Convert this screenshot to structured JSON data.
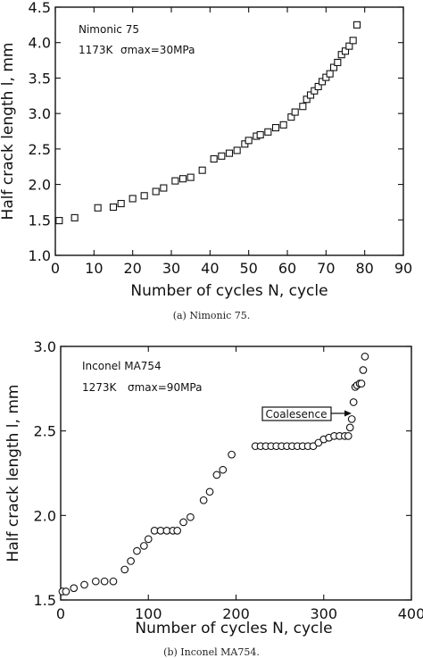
{
  "chart_data": [
    {
      "type": "scatter",
      "marker": "square",
      "xlabel": "Number of cycles  N,  cycle",
      "ylabel": "Half crack length  l,  mm",
      "xlim": [
        0,
        90
      ],
      "ylim": [
        1.0,
        4.5
      ],
      "xticks": [
        "0",
        "10",
        "20",
        "30",
        "40",
        "50",
        "60",
        "70",
        "80",
        "90"
      ],
      "yticks": [
        "1.0",
        "1.5",
        "2.0",
        "2.5",
        "3.0",
        "3.5",
        "4.0",
        "4.5"
      ],
      "annotations": [
        "Nimonic 75",
        "1173K",
        "σmax=30MPa"
      ],
      "caption": "(a)   Nimonic 75.",
      "series": [
        {
          "x": [
            1,
            5,
            11,
            15,
            17,
            20,
            23,
            26,
            28,
            31,
            33,
            35,
            38,
            41,
            43,
            45,
            47,
            49,
            50,
            52,
            53,
            55,
            57,
            59,
            61,
            62,
            64,
            65,
            66,
            67,
            68,
            69,
            70,
            71,
            72,
            73,
            74,
            75,
            76,
            77,
            78
          ],
          "y": [
            1.49,
            1.53,
            1.67,
            1.68,
            1.73,
            1.8,
            1.84,
            1.9,
            1.95,
            2.05,
            2.08,
            2.1,
            2.2,
            2.36,
            2.4,
            2.44,
            2.48,
            2.57,
            2.62,
            2.68,
            2.7,
            2.74,
            2.8,
            2.84,
            2.95,
            3.02,
            3.1,
            3.2,
            3.26,
            3.32,
            3.38,
            3.45,
            3.51,
            3.56,
            3.65,
            3.72,
            3.83,
            3.88,
            3.95,
            4.03,
            4.25
          ]
        }
      ]
    },
    {
      "type": "scatter",
      "marker": "circle",
      "xlabel": "Number of cycles  N,  cycle",
      "ylabel": "Half crack length  l,  mm",
      "xlim": [
        0,
        400
      ],
      "ylim": [
        1.5,
        3.0
      ],
      "xticks": [
        "0",
        "100",
        "200",
        "300",
        "400"
      ],
      "yticks": [
        "1.5",
        "2.0",
        "2.5",
        "3.0"
      ],
      "annotations": [
        "Inconel MA754",
        "1273K",
        "σmax=90MPa",
        "Coalesence"
      ],
      "caption": "(b)   Inconel MA754.",
      "series": [
        {
          "x": [
            2,
            6,
            15,
            27,
            40,
            50,
            60,
            73,
            80,
            87,
            95,
            100,
            107,
            114,
            121,
            128,
            133,
            140,
            148,
            163,
            170,
            178,
            185,
            195,
            222,
            228,
            234,
            240,
            246,
            252,
            258,
            264,
            270,
            276,
            282,
            288,
            294,
            300,
            306,
            312,
            318,
            324,
            328,
            330,
            332,
            334,
            336,
            338,
            341,
            343,
            345,
            347
          ],
          "y": [
            1.55,
            1.55,
            1.57,
            1.59,
            1.61,
            1.61,
            1.61,
            1.68,
            1.73,
            1.79,
            1.82,
            1.86,
            1.91,
            1.91,
            1.91,
            1.91,
            1.91,
            1.96,
            1.99,
            2.09,
            2.14,
            2.24,
            2.27,
            2.36,
            2.41,
            2.41,
            2.41,
            2.41,
            2.41,
            2.41,
            2.41,
            2.41,
            2.41,
            2.41,
            2.41,
            2.41,
            2.43,
            2.45,
            2.46,
            2.47,
            2.47,
            2.47,
            2.47,
            2.52,
            2.57,
            2.67,
            2.76,
            2.77,
            2.78,
            2.78,
            2.86,
            2.94
          ]
        }
      ]
    }
  ]
}
